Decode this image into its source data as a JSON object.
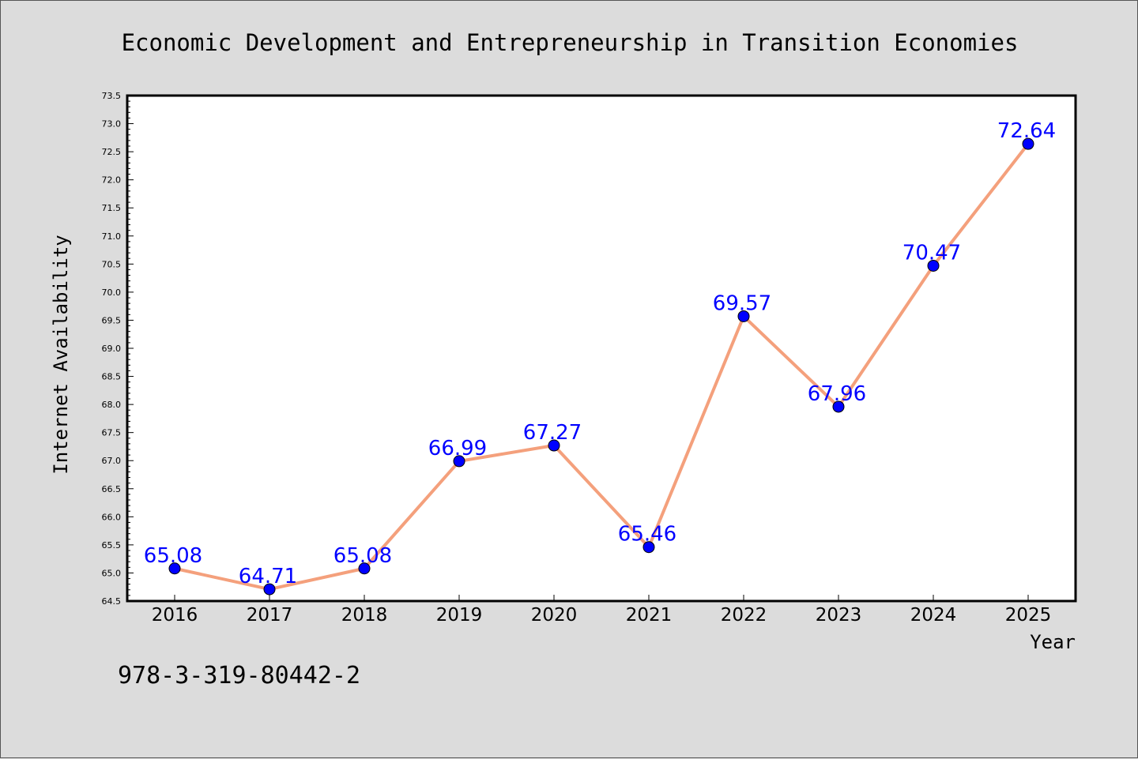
{
  "colors": {
    "background": "#dcdcdc",
    "plot_background": "#ffffff",
    "line": "#f4a07c",
    "marker": "#0000ff",
    "data_label": "#0000ff"
  },
  "isbn": "978-3-319-80442-2",
  "chart_data": {
    "type": "line",
    "title": "Economic Development and Entrepreneurship in Transition Economies",
    "xlabel": "Year",
    "ylabel": "Internet Availability",
    "categories": [
      "2016",
      "2017",
      "2018",
      "2019",
      "2020",
      "2021",
      "2022",
      "2023",
      "2024",
      "2025"
    ],
    "series": [
      {
        "values": [
          65.08,
          64.71,
          65.08,
          66.99,
          67.27,
          65.46,
          69.57,
          67.96,
          70.47,
          72.64
        ],
        "labels": [
          "65.08",
          "64.71",
          "65.08",
          "66.99",
          "67.27",
          "65.46",
          "69.57",
          "67.96",
          "70.47",
          "72.64"
        ]
      }
    ],
    "ylim": [
      64.5,
      73.5
    ],
    "yticks": [
      "64.5",
      "65.0",
      "65.5",
      "66.0",
      "66.5",
      "67.0",
      "67.5",
      "68.0",
      "68.5",
      "69.0",
      "69.5",
      "70.0",
      "70.5",
      "71.0",
      "71.5",
      "72.0",
      "72.5",
      "73.0",
      "73.5"
    ],
    "grid": false,
    "legend": "none"
  }
}
